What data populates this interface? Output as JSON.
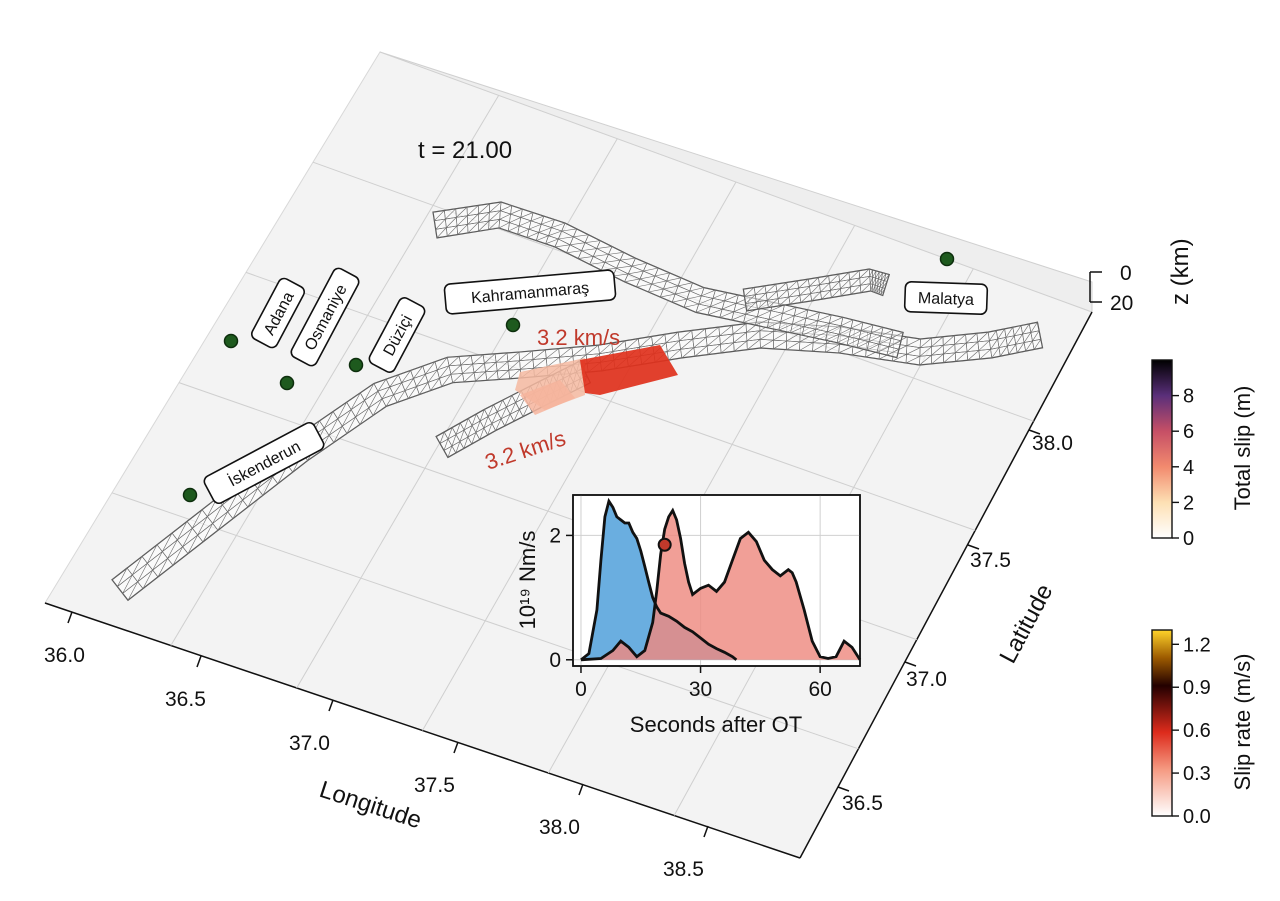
{
  "time_label": "t = 21.00",
  "axes": {
    "longitude_label": "Longitude",
    "latitude_label": "Latitude",
    "z_label": "z (km)",
    "longitude_ticks": [
      "36.0",
      "36.5",
      "37.0",
      "37.5",
      "38.0",
      "38.5"
    ],
    "latitude_ticks": [
      "36.5",
      "37.0",
      "37.5",
      "38.0"
    ],
    "z_ticks": [
      "0",
      "20"
    ]
  },
  "cities": [
    {
      "name": "Adana"
    },
    {
      "name": "Osmaniye"
    },
    {
      "name": "Düziçi"
    },
    {
      "name": "Kahramanmaraş"
    },
    {
      "name": "İskenderun"
    },
    {
      "name": "Malatya"
    }
  ],
  "rupture_velocities": [
    "3.2 km/s",
    "3.2 km/s"
  ],
  "colors": {
    "station_dot": "#1e5a1e",
    "fault_mesh": "#555555",
    "velocity_text": "#c0392b",
    "blue_fill": "#6aaee0",
    "red_fill": "#ee8a80",
    "overlap_fill": "#5c5f94"
  },
  "colorbars": [
    {
      "label": "Total slip (m)",
      "ticks": [
        "0",
        "2",
        "4",
        "6",
        "8"
      ],
      "min": 0,
      "max": 10,
      "colormap": "white-orange-red-purple-black"
    },
    {
      "label": "Slip rate (m/s)",
      "ticks": [
        "0.0",
        "0.3",
        "0.6",
        "0.9",
        "1.2"
      ],
      "min": 0,
      "max": 1.3,
      "colormap": "white-red-black-yellow"
    }
  ],
  "chart_data": {
    "type": "area",
    "xlabel": "Seconds after OT",
    "ylabel": "10¹⁹ Nm/s",
    "xticks": [
      "0",
      "30",
      "60"
    ],
    "yticks": [
      "0",
      "2"
    ],
    "xlim": [
      -2,
      70
    ],
    "ylim": [
      -0.1,
      2.65
    ],
    "grid": true,
    "current_time": 21,
    "current_value": 1.85,
    "series": [
      {
        "color": "blue",
        "x": [
          0,
          2,
          4,
          5,
          6,
          7,
          8,
          9,
          10,
          11,
          12,
          13,
          14,
          15,
          16,
          17,
          18,
          19,
          20,
          22,
          24,
          26,
          28,
          30,
          32,
          34,
          36,
          38,
          39
        ],
        "y": [
          0,
          0.1,
          0.8,
          1.6,
          2.3,
          2.55,
          2.45,
          2.3,
          2.25,
          2.2,
          2.2,
          2.05,
          1.95,
          1.75,
          1.5,
          1.25,
          1.0,
          0.85,
          0.75,
          0.7,
          0.62,
          0.52,
          0.45,
          0.35,
          0.25,
          0.18,
          0.12,
          0.05,
          0
        ]
      },
      {
        "color": "red",
        "x": [
          0,
          5,
          8,
          10,
          12,
          14,
          16,
          18,
          19,
          20,
          21,
          22,
          23,
          24,
          25,
          26,
          27,
          28,
          30,
          32,
          34,
          36,
          38,
          40,
          42,
          44,
          46,
          48,
          50,
          52,
          53,
          54,
          56,
          58,
          60,
          62,
          64,
          66,
          68,
          70
        ],
        "y": [
          0,
          0.02,
          0.15,
          0.3,
          0.2,
          0.05,
          0.15,
          0.6,
          1.1,
          1.7,
          2.1,
          2.3,
          2.4,
          2.25,
          1.95,
          1.55,
          1.25,
          1.05,
          1.15,
          1.2,
          1.1,
          1.25,
          1.6,
          1.95,
          2.05,
          1.9,
          1.6,
          1.45,
          1.35,
          1.45,
          1.4,
          1.25,
          0.8,
          0.3,
          0.05,
          0.02,
          0.05,
          0.3,
          0.2,
          0
        ]
      }
    ]
  }
}
